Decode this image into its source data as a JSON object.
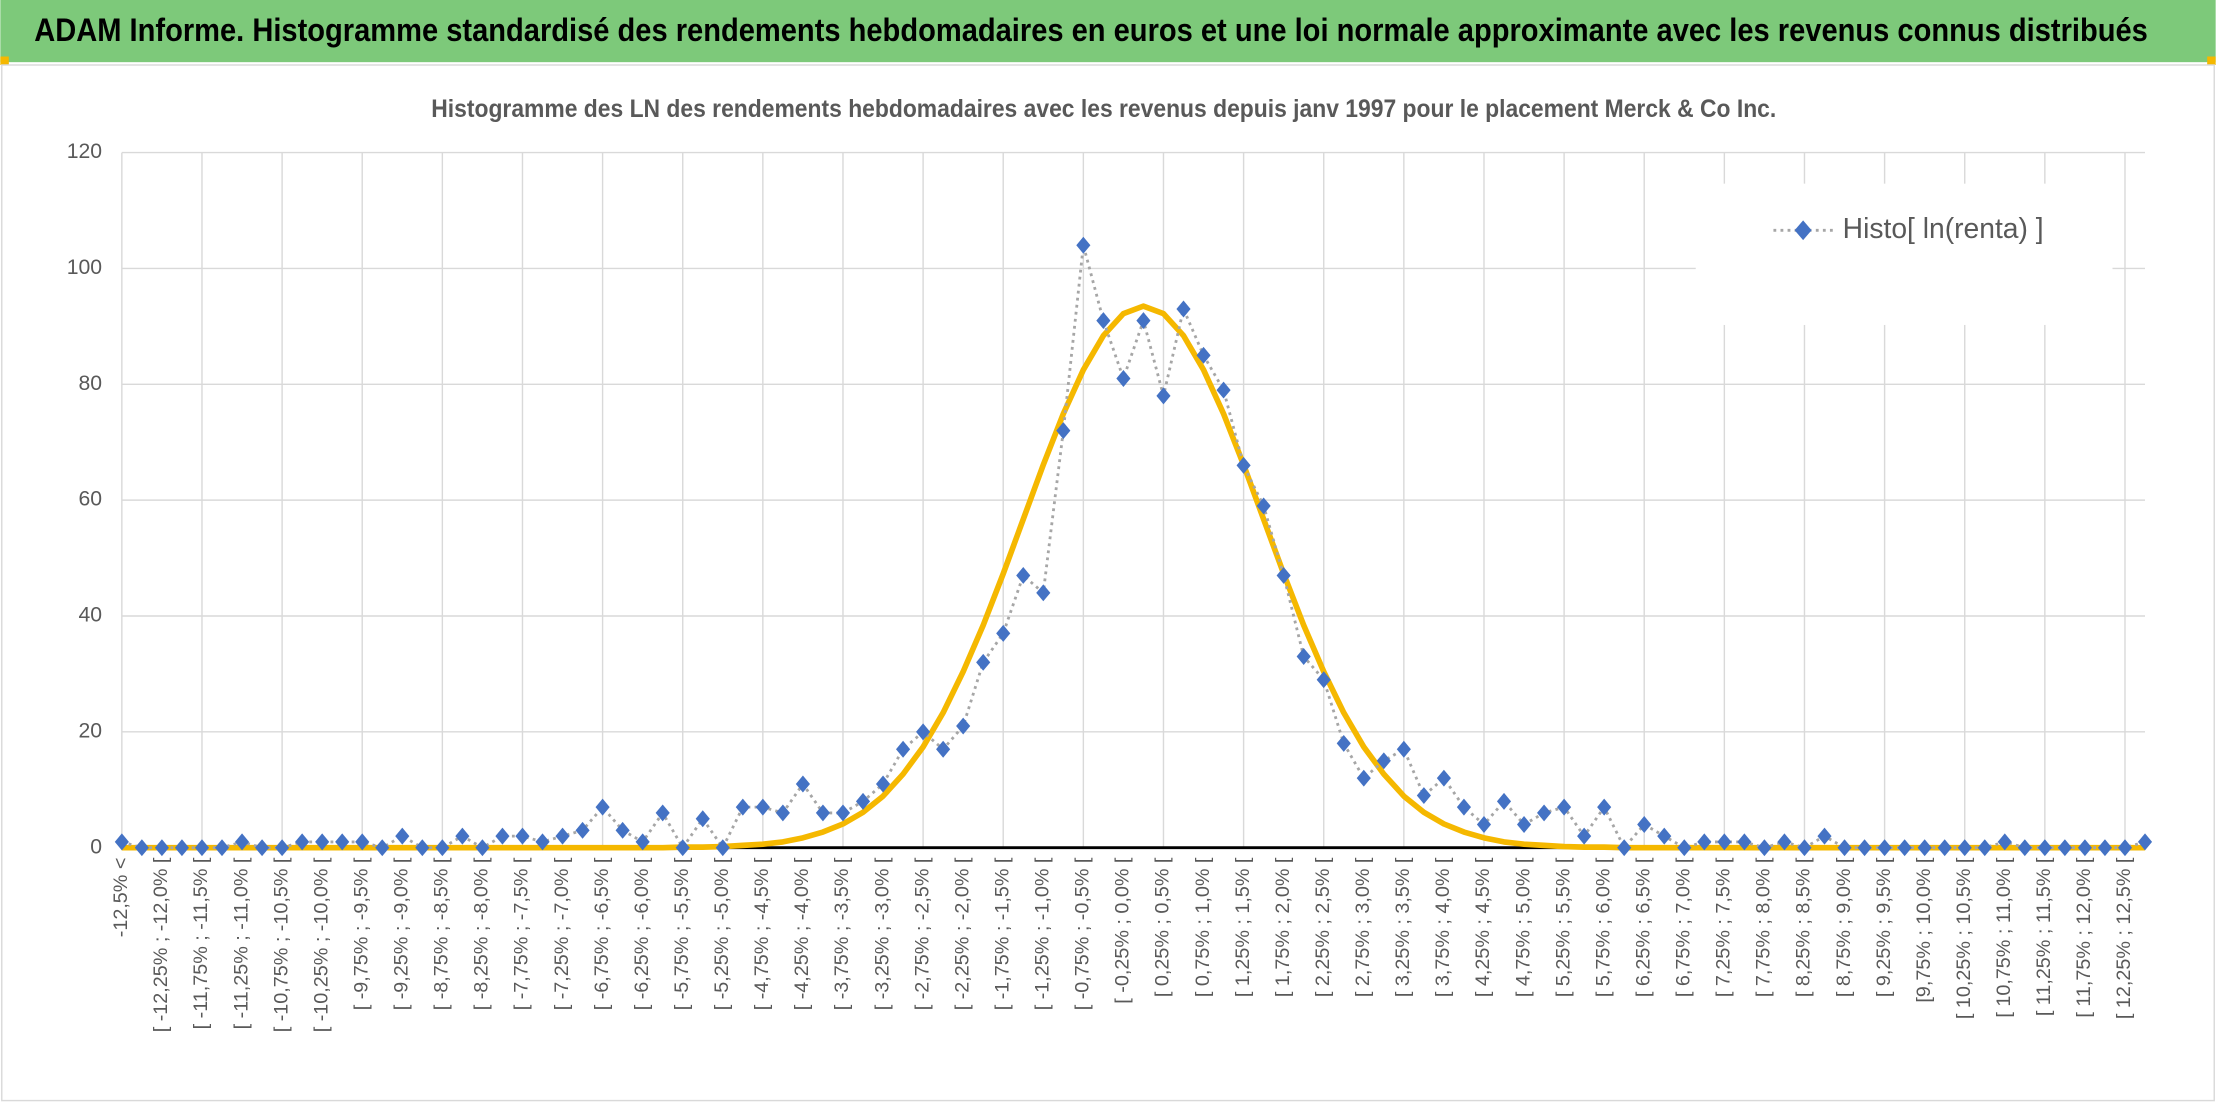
{
  "header": {
    "title": "ADAM Informe. Histogramme standardisé des rendements hebdomadaires en euros et une loi normale approximante avec les revenus connus distribués"
  },
  "chart_data": {
    "type": "line",
    "title": "Histogramme des LN des rendements hebdomadaires avec les revenus depuis janv 1997 pour le placement Merck & Co Inc.",
    "categories": [
      "-12,5% <",
      null,
      "[ -12,25% ; -12,0% [",
      null,
      "[ -11,75% ; -11,5% [",
      null,
      "[ -11,25% ; -11,0% [",
      null,
      "[ -10,75% ; -10,5% [",
      null,
      "[ -10,25% ; -10,0% [",
      null,
      "[ -9,75% ; -9,5% [",
      null,
      "[ -9,25% ; -9,0% [",
      null,
      "[ -8,75% ; -8,5% [",
      null,
      "[ -8,25% ; -8,0% [",
      null,
      "[ -7,75% ; -7,5% [",
      null,
      "[ -7,25% ; -7,0% [",
      null,
      "[ -6,75% ; -6,5% [",
      null,
      "[ -6,25% ; -6,0% [",
      null,
      "[ -5,75% ; -5,5% [",
      null,
      "[ -5,25% ; -5,0% [",
      null,
      "[ -4,75% ; -4,5% [",
      null,
      "[ -4,25% ; -4,0% [",
      null,
      "[ -3,75% ; -3,5% [",
      null,
      "[ -3,25% ; -3,0% [",
      null,
      "[ -2,75% ; -2,5% [",
      null,
      "[ -2,25% ; -2,0% [",
      null,
      "[ -1,75% ; -1,5% [",
      null,
      "[ -1,25% ; -1,0% [",
      null,
      "[ -0,75% ; -0,5% [",
      null,
      "[ -0,25% ; 0,0% [",
      null,
      "[ 0,25% ; 0,5% [",
      null,
      "[ 0,75% ; 1,0% [",
      null,
      "[ 1,25% ; 1,5% [",
      null,
      "[ 1,75% ; 2,0% [",
      null,
      "[ 2,25% ; 2,5% [",
      null,
      "[ 2,75% ; 3,0% [",
      null,
      "[ 3,25% ; 3,5% [",
      null,
      "[ 3,75% ; 4,0% [",
      null,
      "[ 4,25% ; 4,5% [",
      null,
      "[ 4,75% ; 5,0% [",
      null,
      "[ 5,25% ; 5,5% [",
      null,
      "[ 5,75% ; 6,0% [",
      null,
      "[ 6,25% ; 6,5% [",
      null,
      "[ 6,75% ; 7,0% [",
      null,
      "[ 7,25% ; 7,5% [",
      null,
      "[ 7,75% ; 8,0% [",
      null,
      "[ 8,25% ; 8,5% [",
      null,
      "[ 8,75% ; 9,0% [",
      null,
      "[ 9,25% ; 9,5% [",
      null,
      "[9,75% ; 10,0% [",
      null,
      "[ 10,25% ; 10,5% [",
      null,
      "[ 10,75% ; 11,0% [",
      null,
      "[ 11,25% ; 11,5% [",
      null,
      "[ 11,75% ; 12,0% [",
      null,
      "[ 12,25% ; 12,5% [",
      null
    ],
    "series": [
      {
        "name": "Histo[ ln(renta) ]",
        "color": "#4472c4",
        "line_color": "#a6a6a6",
        "values": [
          1,
          0,
          0,
          0,
          0,
          0,
          1,
          0,
          0,
          1,
          1,
          1,
          1,
          0,
          2,
          0,
          0,
          2,
          0,
          2,
          2,
          1,
          2,
          3,
          7,
          3,
          1,
          6,
          0,
          5,
          0,
          7,
          7,
          6,
          11,
          6,
          6,
          8,
          11,
          17,
          20,
          17,
          21,
          32,
          37,
          47,
          44,
          72,
          104,
          91,
          81,
          91,
          78,
          93,
          85,
          79,
          66,
          59,
          47,
          33,
          29,
          18,
          12,
          15,
          17,
          9,
          12,
          7,
          4,
          8,
          4,
          6,
          7,
          2,
          7,
          0,
          4,
          2,
          0,
          1,
          1,
          1,
          0,
          1,
          0,
          2,
          0,
          0,
          0,
          0,
          0,
          0,
          0,
          0,
          1,
          0,
          0,
          0,
          0,
          0,
          0,
          1
        ]
      },
      {
        "color": "#f5b800",
        "values": [
          0,
          0,
          0,
          0,
          0,
          0,
          0,
          0,
          0,
          0,
          0,
          0,
          0,
          0,
          0,
          0,
          0,
          0,
          0,
          0,
          0,
          0,
          0,
          0,
          0,
          0,
          0,
          0,
          0.1,
          0.1,
          0.2,
          0.4,
          0.6,
          1.0,
          1.7,
          2.7,
          4.1,
          6.1,
          8.9,
          12.7,
          17.4,
          23.3,
          30.4,
          38.4,
          47.3,
          56.7,
          66.1,
          74.9,
          82.5,
          88.4,
          92.2,
          93.5,
          92.2,
          88.4,
          82.5,
          74.9,
          66.1,
          56.7,
          47.3,
          38.4,
          30.4,
          23.3,
          17.4,
          12.7,
          8.9,
          6.1,
          4.1,
          2.7,
          1.7,
          1.0,
          0.6,
          0.4,
          0.2,
          0.1,
          0.1,
          0,
          0,
          0,
          0,
          0,
          0,
          0,
          0,
          0,
          0,
          0,
          0,
          0,
          0,
          0,
          0,
          0,
          0,
          0,
          0,
          0,
          0,
          0,
          0,
          0,
          0,
          0
        ]
      }
    ],
    "ylim": [
      0,
      120
    ],
    "yticks": [
      0,
      20,
      40,
      60,
      80,
      100,
      120
    ],
    "grid": true,
    "legend": "top-right"
  }
}
